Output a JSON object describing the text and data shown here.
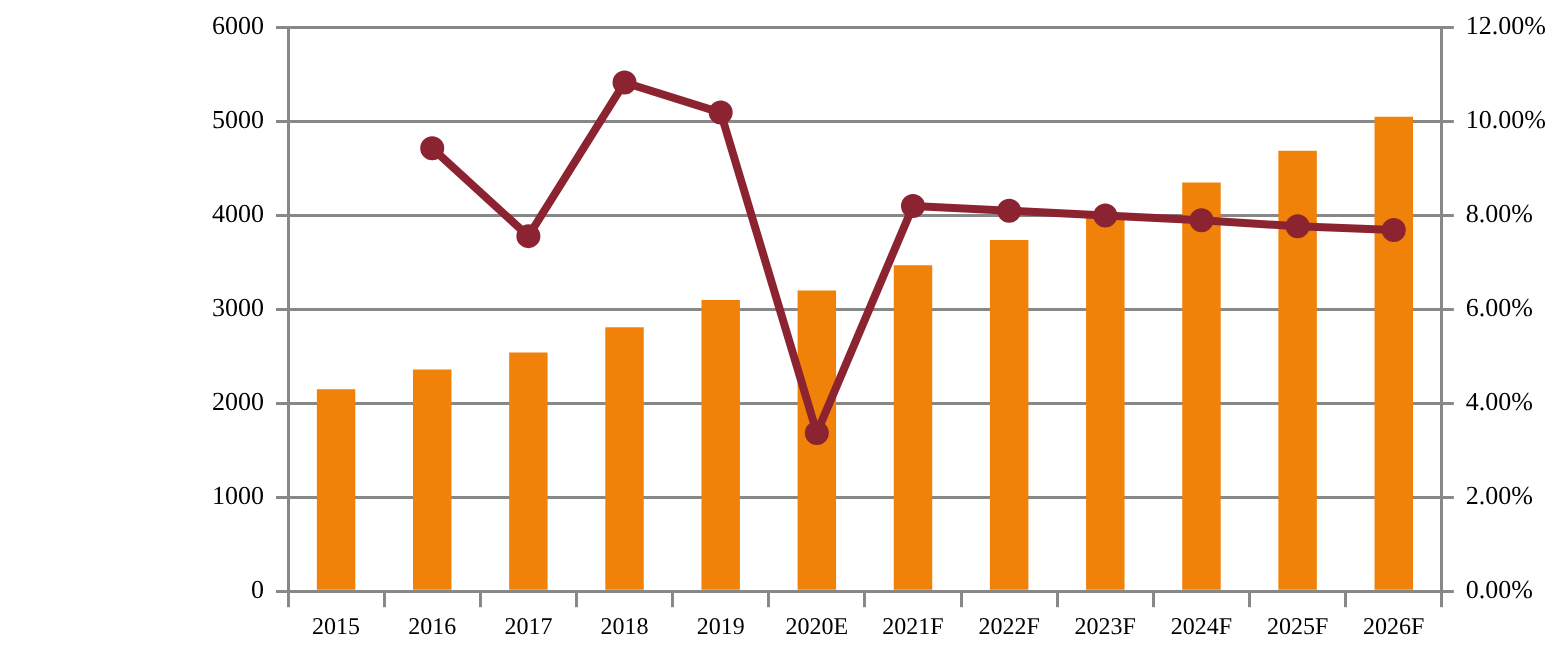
{
  "chart_data": {
    "type": "bar",
    "categories": [
      "2015",
      "2016",
      "2017",
      "2018",
      "2019",
      "2020E",
      "2021F",
      "2022F",
      "2023F",
      "2024F",
      "2025F",
      "2026F"
    ],
    "series": [
      {
        "color": "#f0820a",
        "values": [
          2150,
          2360,
          2540,
          2810,
          3100,
          3200,
          3470,
          3740,
          4020,
          4350,
          4690,
          5050
        ]
      },
      {
        "type": "line",
        "axis": "y2",
        "color": "#8b2331",
        "values": [
          null,
          9.43,
          7.56,
          10.83,
          10.19,
          3.37,
          8.2,
          8.1,
          8.0,
          7.9,
          7.77,
          7.69
        ]
      }
    ],
    "ylim": [
      0,
      6000
    ],
    "yticks": [
      0,
      1000,
      2000,
      3000,
      4000,
      5000,
      6000
    ],
    "y2lim": [
      0,
      12
    ],
    "y2ticks": [
      {
        "value": 0,
        "label": "0.00%"
      },
      {
        "value": 2,
        "label": "2.00%"
      },
      {
        "value": 4,
        "label": "4.00%"
      },
      {
        "value": 6,
        "label": "6.00%"
      },
      {
        "value": 8,
        "label": "8.00%"
      },
      {
        "value": 10,
        "label": "10.00%"
      },
      {
        "value": 12,
        "label": "12.00%"
      }
    ],
    "grid": "y",
    "legend": false,
    "marker": "circle",
    "line_style": "solid"
  }
}
